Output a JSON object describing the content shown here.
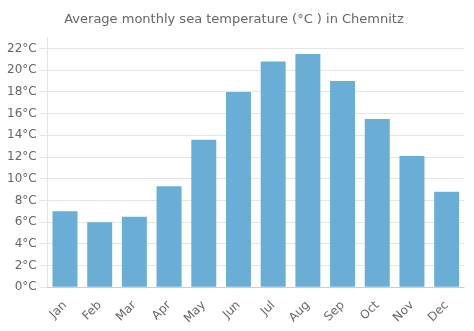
{
  "chart_data": {
    "type": "bar",
    "title": "Average monthly sea temperature (°C ) in Chemnitz",
    "categories": [
      "Jan",
      "Feb",
      "Mar",
      "Apr",
      "May",
      "Jun",
      "Jul",
      "Aug",
      "Sep",
      "Oct",
      "Nov",
      "Dec"
    ],
    "values": [
      7.0,
      6.0,
      6.5,
      9.3,
      13.6,
      18.0,
      20.8,
      21.5,
      19.0,
      15.5,
      12.1,
      8.8
    ],
    "color": "#6aaed6",
    "ylim": [
      0,
      23
    ],
    "yticks": [
      {
        "value": 0,
        "label": "0°C"
      },
      {
        "value": 2,
        "label": "2°C"
      },
      {
        "value": 4,
        "label": "4°C"
      },
      {
        "value": 6,
        "label": "6°C"
      },
      {
        "value": 8,
        "label": "8°C"
      },
      {
        "value": 10,
        "label": "10°C"
      },
      {
        "value": 12,
        "label": "12°C"
      },
      {
        "value": 14,
        "label": "14°C"
      },
      {
        "value": 16,
        "label": "16°C"
      },
      {
        "value": 18,
        "label": "18°C"
      },
      {
        "value": 20,
        "label": "20°C"
      },
      {
        "value": 22,
        "label": "22°C"
      }
    ],
    "grid": true
  }
}
